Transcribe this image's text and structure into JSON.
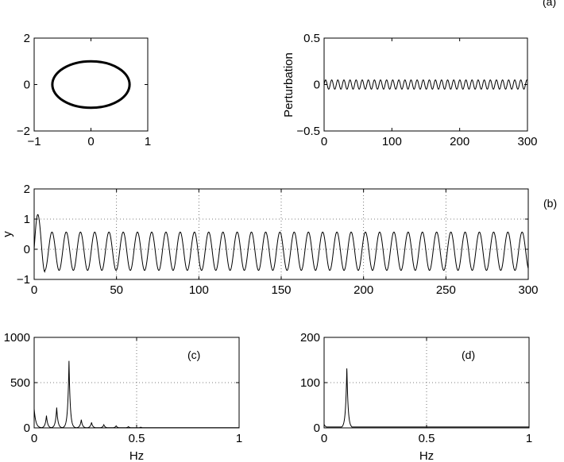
{
  "figure_tag": "(a)",
  "chart_data": [
    {
      "id": "phase",
      "type": "line",
      "title": "",
      "xlabel": "",
      "ylabel": "",
      "xlim": [
        -1,
        1
      ],
      "ylim": [
        -2,
        2
      ],
      "xticks": [
        "−1",
        "0",
        "1"
      ],
      "yticks": [
        "−2",
        "0",
        "2"
      ],
      "grid": false,
      "shape": "closed ellipse centred at origin",
      "x_semi_axis": 0.68,
      "y_semi_axis": 1.0,
      "panel_label": ""
    },
    {
      "id": "perturbation",
      "type": "line",
      "title": "",
      "xlabel": "",
      "ylabel": "Perturbation",
      "xlim": [
        0,
        300
      ],
      "ylim": [
        -0.5,
        0.5
      ],
      "xticks": [
        "0",
        "100",
        "200",
        "300"
      ],
      "yticks": [
        "−0.5",
        "0",
        "0.5"
      ],
      "grid": false,
      "series": [
        {
          "function": "sine",
          "amplitude": 0.05,
          "period": 9.0,
          "x_range": [
            0,
            300
          ]
        }
      ],
      "panel_label": ""
    },
    {
      "id": "y_time_series",
      "type": "line",
      "title": "",
      "xlabel": "",
      "ylabel": "y",
      "xlim": [
        0,
        300
      ],
      "ylim": [
        -1,
        2
      ],
      "xticks": [
        "0",
        "50",
        "100",
        "150",
        "200",
        "250",
        "300"
      ],
      "yticks": [
        "−1",
        "0",
        "1",
        "2"
      ],
      "grid": true,
      "series": [
        {
          "function": "sine with initial transient",
          "initial_peak": 1.15,
          "initial_trough": -0.75,
          "steady_max": 0.57,
          "steady_min": -0.7,
          "period": 8.65,
          "x_range": [
            0,
            300
          ]
        }
      ],
      "panel_label": "(b)"
    },
    {
      "id": "spectrum_c",
      "type": "line",
      "title": "",
      "xlabel": "Hz",
      "ylabel": "",
      "xlim": [
        0,
        1
      ],
      "ylim": [
        0,
        1000
      ],
      "xticks": [
        "0",
        "0.5",
        "1"
      ],
      "yticks": [
        "0",
        "500",
        "1000"
      ],
      "grid": true,
      "peaks": [
        {
          "x": 0.0,
          "y": 210
        },
        {
          "x": 0.06,
          "y": 135
        },
        {
          "x": 0.11,
          "y": 225
        },
        {
          "x": 0.17,
          "y": 740
        },
        {
          "x": 0.23,
          "y": 90
        },
        {
          "x": 0.28,
          "y": 60
        },
        {
          "x": 0.34,
          "y": 35
        },
        {
          "x": 0.4,
          "y": 22
        },
        {
          "x": 0.46,
          "y": 14
        },
        {
          "x": 0.52,
          "y": 8
        }
      ],
      "panel_label": "(c)"
    },
    {
      "id": "spectrum_d",
      "type": "line",
      "title": "",
      "xlabel": "Hz",
      "ylabel": "",
      "xlim": [
        0,
        1
      ],
      "ylim": [
        0,
        200
      ],
      "xticks": [
        "0",
        "0.5",
        "1"
      ],
      "yticks": [
        "0",
        "100",
        "200"
      ],
      "grid": true,
      "peaks": [
        {
          "x": 0.0,
          "y": 8
        },
        {
          "x": 0.111,
          "y": 135
        }
      ],
      "panel_label": "(d)"
    }
  ]
}
